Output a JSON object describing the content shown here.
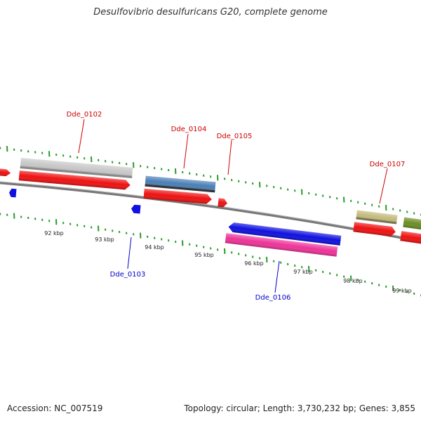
{
  "title": "Desulfovibrio desulfuricans G20, complete genome",
  "footer": {
    "accession": "Accession: NC_007519",
    "summary": "Topology: circular; Length: 3,730,232 bp; Genes: 3,855"
  },
  "colors": {
    "tick_green": "#2a9a2a",
    "backbone": "#888888",
    "cds_red": "#ee1111",
    "forward_label": "#cc0000",
    "reverse_label": "#0000cc",
    "gene_0102": "#c8c8c8",
    "gene_0104": "#4a7fb5",
    "gene_0106": "#1010e0",
    "gene_0107": "#c4bb7c",
    "gene_0108": "#6b8e23",
    "cds_0106": "#ee3399"
  },
  "scale": {
    "unit": "kbp",
    "labels": [
      "92 kbp",
      "93 kbp",
      "94 kbp",
      "95 kbp",
      "96 kbp",
      "97 kbp",
      "98 kbp",
      "99 kbp"
    ]
  },
  "genes": [
    {
      "id": "Dde_0102",
      "strand": "forward"
    },
    {
      "id": "Dde_0103",
      "strand": "reverse"
    },
    {
      "id": "Dde_0104",
      "strand": "forward"
    },
    {
      "id": "Dde_0105",
      "strand": "forward"
    },
    {
      "id": "Dde_0106",
      "strand": "reverse"
    },
    {
      "id": "Dde_0107",
      "strand": "forward"
    }
  ]
}
